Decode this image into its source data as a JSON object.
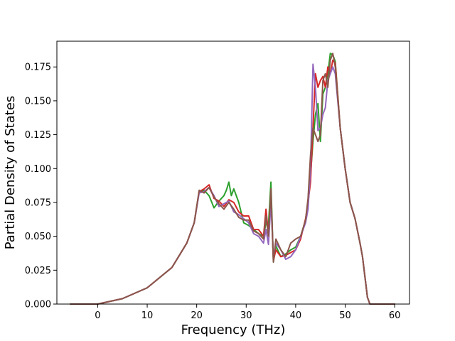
{
  "chart_data": {
    "type": "line",
    "title": "",
    "xlabel": "Frequency (THz)",
    "ylabel": "Partial Density of States",
    "xlim": [
      -8.25,
      63.0
    ],
    "ylim": [
      0.0,
      0.194
    ],
    "xticks": [
      0,
      10,
      20,
      30,
      40,
      50,
      60
    ],
    "xtick_labels": [
      "0",
      "10",
      "20",
      "30",
      "40",
      "50",
      "60"
    ],
    "yticks": [
      0.0,
      0.025,
      0.05,
      0.075,
      0.1,
      0.125,
      0.15,
      0.175
    ],
    "ytick_labels": [
      "0.000",
      "0.025",
      "0.050",
      "0.075",
      "0.100",
      "0.125",
      "0.150",
      "0.175"
    ],
    "grid": false,
    "legend": "none",
    "series": [
      {
        "color": "#2ca02c",
        "x": [
          -5.5,
          0,
          5,
          10,
          15,
          18,
          19.5,
          20.5,
          21.5,
          22.5,
          23.5,
          24.5,
          25.5,
          26,
          26.5,
          27,
          27.5,
          28.5,
          29.5,
          30.5,
          31.5,
          32.5,
          33.5,
          34,
          34.5,
          35,
          35.5,
          36,
          37,
          38,
          39,
          40,
          41,
          42,
          42.5,
          43,
          43.5,
          44,
          44.5,
          45,
          45.5,
          46,
          46.5,
          47,
          47.5,
          48,
          49,
          50,
          51,
          52,
          53,
          53.5,
          54,
          54.5,
          55,
          58,
          60
        ],
        "y": [
          0.0,
          0.0,
          0.004,
          0.012,
          0.027,
          0.045,
          0.06,
          0.083,
          0.084,
          0.08,
          0.071,
          0.076,
          0.08,
          0.084,
          0.09,
          0.08,
          0.085,
          0.075,
          0.06,
          0.058,
          0.055,
          0.052,
          0.05,
          0.06,
          0.058,
          0.09,
          0.031,
          0.043,
          0.035,
          0.037,
          0.04,
          0.042,
          0.05,
          0.062,
          0.075,
          0.095,
          0.12,
          0.14,
          0.148,
          0.12,
          0.155,
          0.16,
          0.17,
          0.185,
          0.184,
          0.179,
          0.13,
          0.1,
          0.075,
          0.063,
          0.045,
          0.035,
          0.02,
          0.005,
          0.0,
          0.0,
          0.0
        ]
      },
      {
        "color": "#d62728",
        "x": [
          -5.5,
          0,
          5,
          10,
          15,
          18,
          19.5,
          20.5,
          21.5,
          22.5,
          23.5,
          24.5,
          25.5,
          26.5,
          27.5,
          28.5,
          29.5,
          30.5,
          31.5,
          32.5,
          33.5,
          34,
          34.5,
          35,
          35.5,
          36,
          37,
          38,
          39,
          40,
          41,
          42,
          42.5,
          43,
          43.5,
          44,
          44.5,
          45,
          45.5,
          46,
          46.5,
          47,
          47.5,
          48,
          49,
          50,
          51,
          52,
          53,
          53.5,
          54,
          54.5,
          55,
          58,
          60
        ],
        "y": [
          0.0,
          0.0,
          0.004,
          0.012,
          0.027,
          0.045,
          0.06,
          0.083,
          0.085,
          0.088,
          0.078,
          0.076,
          0.072,
          0.077,
          0.075,
          0.068,
          0.065,
          0.065,
          0.055,
          0.055,
          0.05,
          0.07,
          0.052,
          0.08,
          0.032,
          0.04,
          0.035,
          0.036,
          0.038,
          0.04,
          0.048,
          0.063,
          0.075,
          0.09,
          0.13,
          0.17,
          0.16,
          0.165,
          0.168,
          0.16,
          0.175,
          0.17,
          0.18,
          0.178,
          0.13,
          0.1,
          0.075,
          0.063,
          0.045,
          0.035,
          0.02,
          0.005,
          0.0,
          0.0,
          0.0
        ]
      },
      {
        "color": "#9467bd",
        "x": [
          -5.5,
          0,
          5,
          10,
          15,
          18,
          19.5,
          20.5,
          21.5,
          22.5,
          23.5,
          24.5,
          25.5,
          26.5,
          27.5,
          28.5,
          29.5,
          30.5,
          31.5,
          32.5,
          33.5,
          34,
          34.5,
          35,
          35.5,
          36,
          37,
          38,
          39,
          40,
          41,
          42,
          42.5,
          43,
          43.5,
          44,
          44.5,
          45,
          45.5,
          46,
          46.5,
          47,
          47.5,
          48,
          49,
          50,
          51,
          52,
          53,
          53.5,
          54,
          54.5,
          55,
          58,
          60
        ],
        "y": [
          0.0,
          0.0,
          0.004,
          0.012,
          0.027,
          0.045,
          0.06,
          0.082,
          0.083,
          0.086,
          0.08,
          0.072,
          0.074,
          0.076,
          0.068,
          0.066,
          0.063,
          0.06,
          0.052,
          0.05,
          0.045,
          0.055,
          0.044,
          0.075,
          0.035,
          0.045,
          0.04,
          0.033,
          0.035,
          0.04,
          0.05,
          0.06,
          0.07,
          0.1,
          0.177,
          0.16,
          0.128,
          0.13,
          0.14,
          0.145,
          0.165,
          0.17,
          0.175,
          0.17,
          0.13,
          0.1,
          0.075,
          0.063,
          0.045,
          0.035,
          0.02,
          0.005,
          0.0,
          0.0,
          0.0
        ]
      },
      {
        "color": "#8c564b",
        "x": [
          -5.5,
          0,
          5,
          10,
          15,
          18,
          19.5,
          20.5,
          21.5,
          22.5,
          23.5,
          24.5,
          25.5,
          26.5,
          27.5,
          28.5,
          29.5,
          30.5,
          31.5,
          32.5,
          33.5,
          34,
          34.5,
          35,
          35.5,
          36,
          37,
          38,
          39,
          40,
          41,
          42,
          42.5,
          43,
          43.5,
          44,
          44.5,
          45,
          45.5,
          46,
          46.5,
          47,
          47.5,
          48,
          49,
          50,
          51,
          52,
          53,
          53.5,
          54,
          54.5,
          55,
          58,
          60
        ],
        "y": [
          0.0,
          0.0,
          0.004,
          0.012,
          0.027,
          0.045,
          0.06,
          0.084,
          0.082,
          0.086,
          0.079,
          0.074,
          0.07,
          0.075,
          0.07,
          0.064,
          0.062,
          0.062,
          0.054,
          0.052,
          0.048,
          0.065,
          0.05,
          0.085,
          0.031,
          0.048,
          0.04,
          0.035,
          0.045,
          0.048,
          0.05,
          0.062,
          0.078,
          0.11,
          0.13,
          0.125,
          0.12,
          0.125,
          0.165,
          0.17,
          0.16,
          0.18,
          0.185,
          0.175,
          0.13,
          0.1,
          0.075,
          0.063,
          0.045,
          0.035,
          0.02,
          0.005,
          0.0,
          0.0,
          0.0
        ]
      }
    ]
  }
}
